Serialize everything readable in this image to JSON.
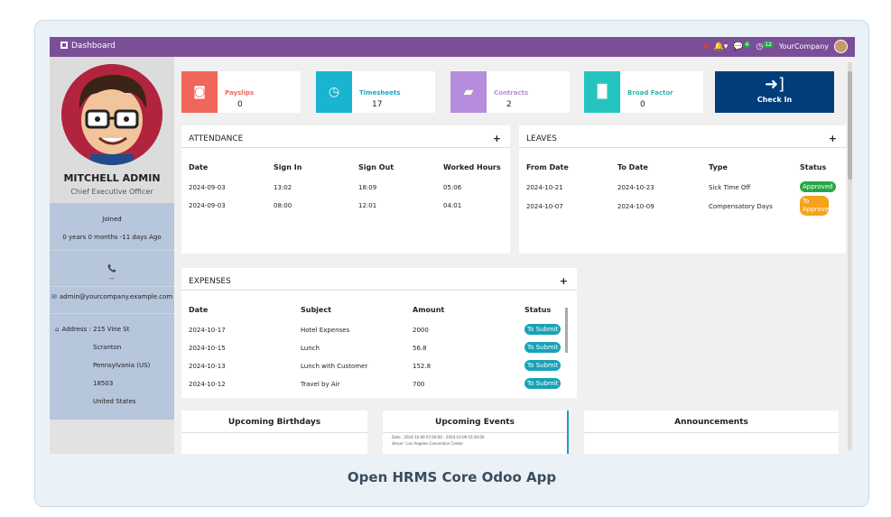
{
  "caption": "Open HRMS Core Odoo App",
  "topbar": {
    "title": "Dashboard",
    "chat_badge": "4",
    "activity_badge": "12",
    "company": "YourCompany"
  },
  "profile": {
    "name": "MITCHELL ADMIN",
    "role": "Chief Executive Officer",
    "joined_label": "Joined",
    "joined_value": "0 years 0 months -11 days Ago",
    "phone_icon": "phone-icon",
    "phone_value": "--",
    "email": "admin@yourcompany.example.com",
    "address_label": "Address : 215 Vine St",
    "address_lines": [
      "Scranton",
      "Pennsylvania (US)",
      "18503",
      "United States"
    ]
  },
  "stats": [
    {
      "label": "Payslips",
      "value": "0",
      "color": "#f0665a",
      "label_color": "#f0665a",
      "icon": "money-icon"
    },
    {
      "label": "Timesheets",
      "value": "17",
      "color": "#18b4d0",
      "label_color": "#18a8c8",
      "icon": "clock-icon"
    },
    {
      "label": "Contracts",
      "value": "2",
      "color": "#b68ddc",
      "label_color": "#b68ddc",
      "icon": "document-icon"
    },
    {
      "label": "Broad Factor",
      "value": "0",
      "color": "#25c4bf",
      "label_color": "#25b8b3",
      "icon": "chart-icon"
    }
  ],
  "checkin": {
    "label": "Check In",
    "color": "#003d7a"
  },
  "attendance": {
    "title": "ATTENDANCE",
    "headers": [
      "Date",
      "Sign In",
      "Sign Out",
      "Worked Hours"
    ],
    "rows": [
      [
        "2024-09-03",
        "13:02",
        "18:09",
        "05:06"
      ],
      [
        "2024-09-03",
        "08:00",
        "12:01",
        "04:01"
      ]
    ]
  },
  "leaves": {
    "title": "LEAVES",
    "headers": [
      "From Date",
      "To Date",
      "Type",
      "Status"
    ],
    "rows": [
      {
        "from": "2024-10-21",
        "to": "2024-10-23",
        "type": "Sick Time Off",
        "status": "Approved",
        "status_color": "#28a745"
      },
      {
        "from": "2024-10-07",
        "to": "2024-10-09",
        "type": "Compensatory Days",
        "status": "To Approve",
        "status_color": "#f7a21b"
      }
    ]
  },
  "expenses": {
    "title": "EXPENSES",
    "headers": [
      "Date",
      "Subject",
      "Amount",
      "Status"
    ],
    "rows": [
      [
        "2024-10-17",
        "Hotel Expenses",
        "2000",
        "To Submit"
      ],
      [
        "2024-10-15",
        "Lunch",
        "56.8",
        "To Submit"
      ],
      [
        "2024-10-13",
        "Lunch with Customer",
        "152.8",
        "To Submit"
      ],
      [
        "2024-10-12",
        "Travel by Air",
        "700",
        "To Submit"
      ]
    ],
    "status_color": "#17a2b8"
  },
  "bottom": {
    "birthdays": "Upcoming Birthdays",
    "events": "Upcoming Events",
    "events_line1": "Date : 2024-10-09 07:00:00 - 2024-10-09 16:30:00",
    "events_line2": "Venue : Los Angeles Convention Center",
    "announcements": "Announcements"
  }
}
